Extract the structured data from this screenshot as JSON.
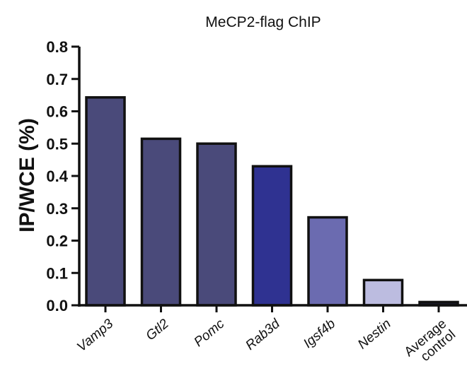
{
  "chart_data": {
    "type": "bar",
    "title": "MeCP2-flag ChIP",
    "ylabel": "IP/WCE (%)",
    "xlabel": "",
    "ylim": [
      0,
      0.8
    ],
    "yticks": [
      "0.0",
      "0.1",
      "0.2",
      "0.3",
      "0.4",
      "0.5",
      "0.6",
      "0.7",
      "0.8"
    ],
    "categories": [
      {
        "label": "Vamp3",
        "italic": true
      },
      {
        "label": "Gtl2",
        "italic": true
      },
      {
        "label": "Pomc",
        "italic": true
      },
      {
        "label": "Rab3d",
        "italic": true
      },
      {
        "label": "Igsf4b",
        "italic": true
      },
      {
        "label": "Nestin",
        "italic": true
      },
      {
        "label": [
          "Average",
          "control"
        ],
        "italic": false
      }
    ],
    "values": [
      0.643,
      0.515,
      0.5,
      0.43,
      0.272,
      0.078,
      0.01
    ],
    "colors": [
      "#4a4a7a",
      "#4a4a7a",
      "#4a4a7a",
      "#2f3291",
      "#6b6bb0",
      "#bcbce0",
      "#1a1a2a"
    ],
    "grid": false,
    "legend": "none"
  }
}
